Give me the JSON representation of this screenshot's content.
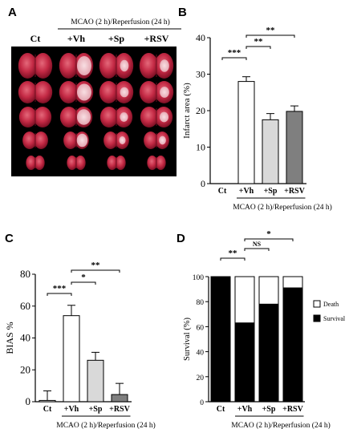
{
  "chart_data": [
    {
      "panel": "A",
      "type": "image",
      "group_header": "MCAO (2 h)/Reperfusion (24 h)",
      "column_labels": [
        "Ct",
        "+Vh",
        "+Sp",
        "+RSV"
      ]
    },
    {
      "panel": "B",
      "type": "bar",
      "categories": [
        "Ct",
        "+Vh",
        "+Sp",
        "+RSV"
      ],
      "values": [
        0,
        28,
        17.5,
        19.8
      ],
      "errors": [
        0,
        1.3,
        1.7,
        1.5
      ],
      "colors": [
        "#ffffff",
        "#ffffff",
        "#d9d9d9",
        "#7f7f7f"
      ],
      "ylabel": "Infarct area (%)",
      "xlabel": "MCAO (2 h)/Reperfusion (24 h)",
      "ylim": [
        0,
        40
      ],
      "yticks": [
        "0",
        "10",
        "20",
        "30",
        "40"
      ],
      "significance": [
        {
          "from": 0,
          "to": 1,
          "label": "***"
        },
        {
          "from": 1,
          "to": 2,
          "label": "**"
        },
        {
          "from": 1,
          "to": 3,
          "label": "**"
        }
      ]
    },
    {
      "panel": "C",
      "type": "bar",
      "categories": [
        "Ct",
        "+Vh",
        "+Sp",
        "+RSV"
      ],
      "values": [
        0.8,
        54,
        26,
        4.5
      ],
      "errors": [
        6,
        6.5,
        5,
        7
      ],
      "colors": [
        "#ffffff",
        "#ffffff",
        "#d9d9d9",
        "#7f7f7f"
      ],
      "ylabel": "BIAS %",
      "xlabel": "MCAO (2 h)/Reperfusion (24 h)",
      "ylim": [
        0,
        80
      ],
      "yticks": [
        "0",
        "20",
        "40",
        "60",
        "80"
      ],
      "significance": [
        {
          "from": 0,
          "to": 1,
          "label": "***"
        },
        {
          "from": 1,
          "to": 2,
          "label": "*"
        },
        {
          "from": 1,
          "to": 3,
          "label": "**"
        }
      ]
    },
    {
      "panel": "D",
      "type": "bar",
      "stacked": true,
      "categories": [
        "Ct",
        "+Vh",
        "+Sp",
        "+RSV"
      ],
      "series": [
        {
          "name": "Survival",
          "color": "#000000",
          "values": [
            100,
            63,
            78,
            91
          ]
        },
        {
          "name": "Death",
          "color": "#ffffff",
          "values": [
            0,
            37,
            22,
            9
          ]
        }
      ],
      "ylabel": "Survival (%)",
      "xlabel": "MCAO (2 h)/Reperfusion (24 h)",
      "ylim": [
        0,
        100
      ],
      "yticks": [
        "0",
        "20",
        "40",
        "60",
        "80",
        "100"
      ],
      "legend_position": "right",
      "significance": [
        {
          "from": 0,
          "to": 1,
          "label": "**"
        },
        {
          "from": 1,
          "to": 2,
          "label": "NS"
        },
        {
          "from": 1,
          "to": 3,
          "label": "*"
        }
      ]
    }
  ]
}
